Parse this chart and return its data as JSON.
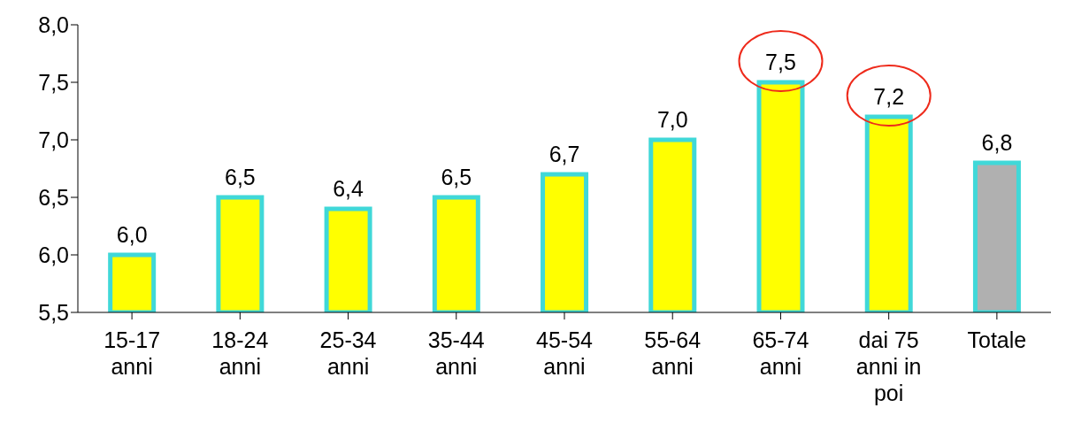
{
  "chart_data": {
    "type": "bar",
    "categories": [
      "15-17 anni",
      "18-24 anni",
      "25-34 anni",
      "35-44 anni",
      "45-54 anni",
      "55-64 anni",
      "65-74 anni",
      "dai 75 anni in poi",
      "Totale"
    ],
    "values": [
      6.0,
      6.5,
      6.4,
      6.5,
      6.7,
      7.0,
      7.5,
      7.2,
      6.8
    ],
    "colors": [
      "#ffff00",
      "#ffff00",
      "#ffff00",
      "#ffff00",
      "#ffff00",
      "#ffff00",
      "#ffff00",
      "#ffff00",
      "#b0b0b0"
    ],
    "ylim": [
      5.5,
      8.0
    ],
    "yticks": [
      {
        "value": 5.5,
        "label": "5,5"
      },
      {
        "value": 6.0,
        "label": "6,0"
      },
      {
        "value": 6.5,
        "label": "6,5"
      },
      {
        "value": 7.0,
        "label": "7,0"
      },
      {
        "value": 7.5,
        "label": "7,5"
      },
      {
        "value": 8.0,
        "label": "8,0"
      }
    ],
    "value_labels": [
      "6,0",
      "6,5",
      "6,4",
      "6,5",
      "6,7",
      "7,0",
      "7,5",
      "7,2",
      "6,8"
    ],
    "grid": false,
    "legend": false
  }
}
